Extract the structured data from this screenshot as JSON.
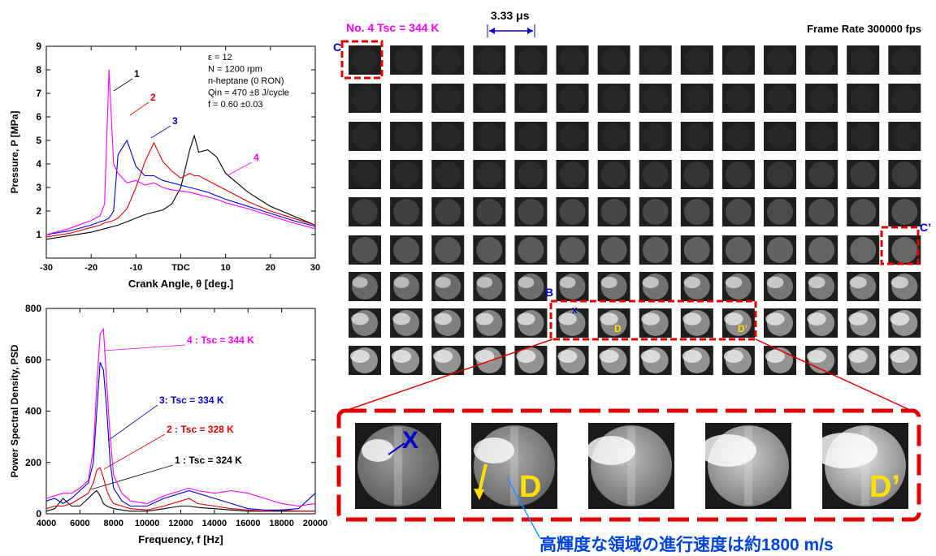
{
  "chart_data": [
    {
      "type": "line",
      "xlabel": "Crank Angle, θ [deg.]",
      "ylabel": "Pressure, P [MPa]",
      "annotations": [
        "ε = 12",
        "N = 1200 rpm",
        "n-heptane (0 RON)",
        "Qin = 470 ±8 J/cycle",
        "f = 0.60 ±0.03"
      ],
      "x": [
        -30,
        -25,
        -20,
        -18,
        -17,
        -16,
        -15,
        -14,
        -12,
        -10,
        -8,
        -6,
        -4,
        -2,
        0,
        2,
        3,
        4,
        6,
        8,
        10,
        15,
        20,
        25,
        30
      ],
      "series": [
        {
          "name": "1",
          "color": "#000000",
          "values": [
            0.8,
            0.95,
            1.1,
            1.2,
            1.25,
            1.3,
            1.35,
            1.4,
            1.55,
            1.7,
            1.85,
            1.95,
            2.05,
            2.3,
            3.0,
            4.6,
            5.2,
            4.5,
            4.6,
            4.3,
            3.6,
            2.8,
            2.2,
            1.8,
            1.4
          ]
        },
        {
          "name": "2",
          "color": "#e00000",
          "values": [
            0.9,
            1.05,
            1.3,
            1.4,
            1.5,
            1.55,
            1.6,
            1.7,
            2.1,
            3.0,
            4.1,
            4.9,
            4.1,
            3.7,
            3.4,
            3.6,
            3.5,
            3.5,
            3.3,
            3.1,
            2.9,
            2.4,
            2.0,
            1.7,
            1.4
          ]
        },
        {
          "name": "3",
          "color": "#0000d0",
          "values": [
            1.0,
            1.15,
            1.4,
            1.55,
            1.6,
            1.7,
            2.0,
            4.4,
            5.0,
            3.9,
            3.5,
            3.5,
            3.3,
            3.2,
            3.1,
            3.0,
            2.95,
            2.9,
            2.8,
            2.65,
            2.5,
            2.2,
            1.9,
            1.6,
            1.35
          ]
        },
        {
          "name": "4",
          "color": "#ff00ff",
          "values": [
            1.0,
            1.25,
            1.6,
            1.8,
            2.3,
            8.0,
            4.0,
            3.6,
            3.2,
            3.3,
            3.1,
            3.2,
            3.0,
            2.9,
            2.85,
            2.8,
            2.75,
            2.7,
            2.6,
            2.5,
            2.35,
            2.1,
            1.8,
            1.5,
            1.25
          ]
        }
      ],
      "xlim": [
        -30,
        30
      ],
      "xticks": [
        -30,
        -20,
        -10,
        {
          "value": 0,
          "label": "TDC"
        },
        10,
        20,
        30
      ],
      "ylim": [
        0,
        9
      ],
      "yticks": [
        1,
        2,
        3,
        4,
        5,
        6,
        7,
        8,
        9
      ]
    },
    {
      "type": "line",
      "xlabel": "Frequency, f [Hz]",
      "ylabel": "Power Spectral Density, PSD",
      "x": [
        4000,
        4500,
        5000,
        5500,
        6000,
        6500,
        6800,
        7000,
        7200,
        7400,
        7600,
        7800,
        8000,
        8500,
        9000,
        10000,
        11000,
        12000,
        12500,
        13000,
        14000,
        15000,
        16000,
        17000,
        18000,
        19000,
        20000
      ],
      "series": [
        {
          "name": "1 : Tsc = 324 K",
          "color": "#000000",
          "values": [
            10,
            20,
            60,
            30,
            30,
            60,
            80,
            90,
            70,
            40,
            30,
            25,
            20,
            15,
            10,
            10,
            20,
            30,
            30,
            25,
            20,
            15,
            10,
            10,
            10,
            10,
            10
          ]
        },
        {
          "name": "2 : Tsc = 328 K",
          "color": "#e00000",
          "values": [
            20,
            30,
            30,
            40,
            60,
            80,
            120,
            170,
            180,
            140,
            90,
            60,
            40,
            30,
            20,
            15,
            30,
            50,
            60,
            40,
            30,
            20,
            15,
            10,
            15,
            10,
            10
          ]
        },
        {
          "name": "3:  Tsc = 334 K",
          "color": "#0000d0",
          "values": [
            50,
            60,
            40,
            60,
            90,
            120,
            200,
            400,
            590,
            560,
            400,
            200,
            100,
            50,
            30,
            30,
            60,
            80,
            90,
            80,
            60,
            40,
            20,
            15,
            15,
            20,
            80
          ]
        },
        {
          "name": "4 : Tsc = 344 K",
          "color": "#ff00ff",
          "values": [
            60,
            70,
            80,
            80,
            100,
            130,
            250,
            500,
            700,
            720,
            500,
            300,
            150,
            80,
            50,
            40,
            70,
            90,
            100,
            90,
            80,
            90,
            80,
            60,
            40,
            30,
            40
          ]
        }
      ],
      "xlim": [
        4000,
        20000
      ],
      "xticks": [
        4000,
        6000,
        8000,
        10000,
        12000,
        14000,
        16000,
        18000,
        20000
      ],
      "ylim": [
        0,
        800
      ],
      "yticks": [
        0,
        200,
        400,
        600,
        800
      ]
    }
  ],
  "frames": {
    "title": "No. 4 Tsc = 344 K",
    "interval": "3.33 μs",
    "frame_rate": "Frame Rate 300000 fps",
    "markers": [
      "C",
      "C’",
      "B",
      "X",
      "D",
      "D’"
    ],
    "zoom_labels": [
      "X",
      "D",
      "D’"
    ],
    "caption": "高輝度な領域の進行速度は約1800 m/s"
  }
}
